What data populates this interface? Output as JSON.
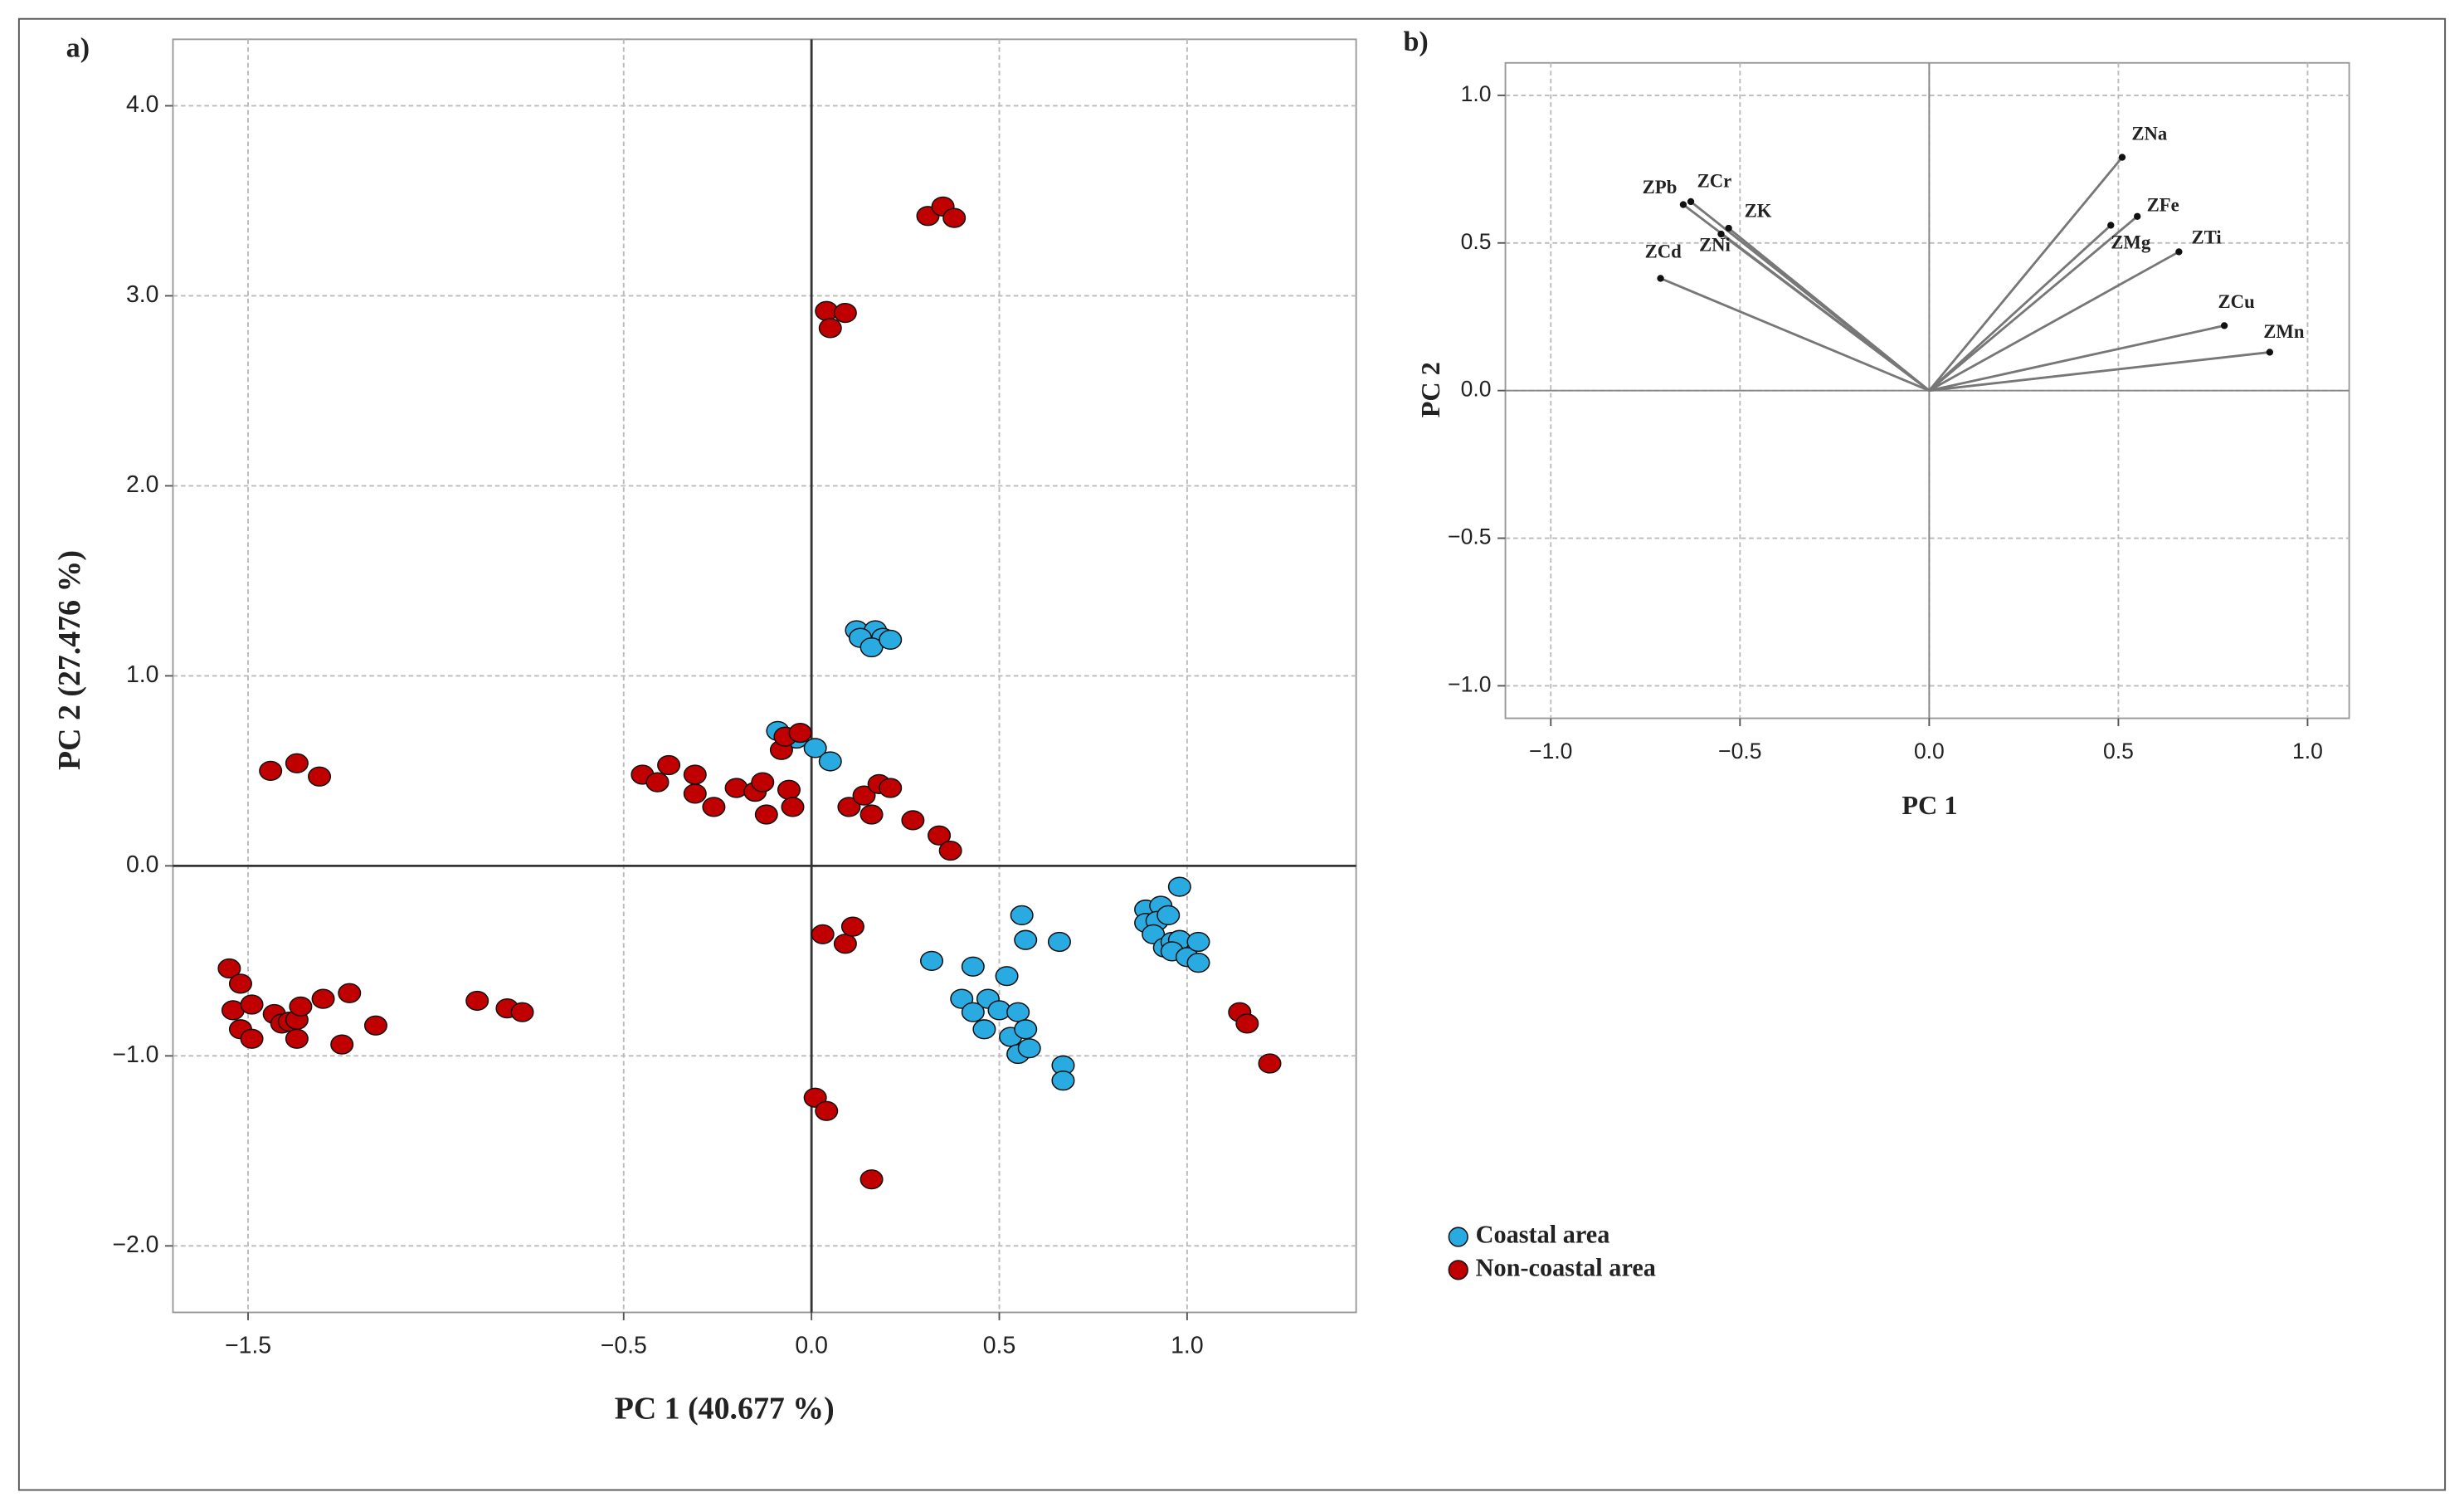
{
  "chart_data": [
    {
      "type": "scatter",
      "panel_label": "a)",
      "xlabel": "PC 1 (40.677 %)",
      "ylabel": "PC 2 (27.476 %)",
      "xlim": [
        -1.7,
        1.45
      ],
      "ylim": [
        -2.35,
        4.35
      ],
      "xticks": [
        {
          "value": -1.5,
          "label": "−1.5"
        },
        {
          "value": -0.5,
          "label": "−0.5"
        },
        {
          "value": 0,
          "label": "0.0"
        },
        0.5,
        {
          "value": 1,
          "label": "1.0"
        }
      ],
      "yticks": [
        {
          "value": -2,
          "label": "−2.0"
        },
        {
          "value": -1,
          "label": "−1.0"
        },
        {
          "value": 0,
          "label": "0.0"
        },
        {
          "value": 1,
          "label": "1.0"
        },
        {
          "value": 2,
          "label": "2.0"
        },
        {
          "value": 3,
          "label": "3.0"
        },
        {
          "value": 4,
          "label": "4.0"
        }
      ],
      "grid": true,
      "series": [
        {
          "name": "Coastal area",
          "color": "#29abe2",
          "x": [
            0.12,
            0.17,
            0.19,
            0.13,
            0.16,
            0.21,
            -0.09,
            -0.04,
            0.01,
            0.05,
            0.32,
            0.43,
            0.52,
            0.56,
            0.57,
            0.4,
            0.47,
            0.43,
            0.5,
            0.46,
            0.55,
            0.53,
            0.57,
            0.55,
            0.58,
            0.66,
            0.67,
            0.67,
            0.89,
            0.89,
            0.93,
            0.92,
            0.95,
            0.91,
            0.94,
            0.96,
            0.98,
            0.96,
            0.98,
            1.0,
            1.03,
            1.03
          ],
          "y": [
            1.24,
            1.24,
            1.2,
            1.2,
            1.15,
            1.19,
            0.71,
            0.67,
            0.62,
            0.55,
            -0.5,
            -0.53,
            -0.58,
            -0.26,
            -0.39,
            -0.7,
            -0.7,
            -0.77,
            -0.76,
            -0.86,
            -0.77,
            -0.9,
            -0.86,
            -0.99,
            -0.96,
            -0.4,
            -1.05,
            -1.13,
            -0.23,
            -0.3,
            -0.21,
            -0.29,
            -0.26,
            -0.36,
            -0.43,
            -0.4,
            -0.39,
            -0.45,
            -0.11,
            -0.48,
            -0.4,
            -0.51
          ]
        },
        {
          "name": "Non-coastal area",
          "color": "#c00000",
          "x": [
            0.31,
            0.35,
            0.38,
            0.04,
            0.05,
            0.09,
            -1.44,
            -1.37,
            -1.31,
            -0.45,
            -0.41,
            -0.38,
            -0.31,
            -0.31,
            -0.26,
            -0.2,
            -0.15,
            -0.13,
            -0.12,
            -0.06,
            -0.05,
            -0.08,
            -0.07,
            -0.03,
            0.1,
            0.14,
            0.16,
            0.18,
            0.21,
            0.27,
            0.34,
            0.37,
            0.03,
            0.09,
            0.11,
            0.01,
            0.04,
            0.16,
            -1.55,
            -1.52,
            -1.54,
            -1.52,
            -1.49,
            -1.49,
            -1.43,
            -1.41,
            -1.39,
            -1.37,
            -1.37,
            -1.36,
            -1.3,
            -1.25,
            -1.23,
            -1.16,
            -0.89,
            -0.81,
            -0.77,
            1.14,
            1.16,
            1.22
          ],
          "y": [
            3.42,
            3.47,
            3.41,
            2.92,
            2.83,
            2.91,
            0.5,
            0.54,
            0.47,
            0.48,
            0.44,
            0.53,
            0.48,
            0.38,
            0.31,
            0.41,
            0.39,
            0.44,
            0.27,
            0.4,
            0.31,
            0.61,
            0.68,
            0.7,
            0.31,
            0.37,
            0.27,
            0.43,
            0.41,
            0.24,
            0.16,
            0.08,
            -0.36,
            -0.41,
            -0.32,
            -1.22,
            -1.29,
            -1.65,
            -0.54,
            -0.62,
            -0.76,
            -0.86,
            -0.73,
            -0.91,
            -0.78,
            -0.83,
            -0.82,
            -0.81,
            -0.91,
            -0.74,
            -0.7,
            -0.94,
            -0.67,
            -0.84,
            -0.71,
            -0.75,
            -0.77,
            -0.77,
            -0.83,
            -1.04
          ]
        }
      ]
    },
    {
      "type": "vector",
      "panel_label": "b)",
      "xlabel": "PC 1",
      "ylabel": "PC 2",
      "xlim": [
        -1.12,
        1.11
      ],
      "ylim": [
        -1.11,
        1.11
      ],
      "xticks": [
        {
          "value": -1,
          "label": "−1.0"
        },
        {
          "value": -0.5,
          "label": "−0.5"
        },
        {
          "value": 0,
          "label": "0.0"
        },
        0.5,
        {
          "value": 1,
          "label": "1.0"
        }
      ],
      "yticks": [
        {
          "value": -1,
          "label": "−1.0"
        },
        {
          "value": -0.5,
          "label": "−0.5"
        },
        {
          "value": 0,
          "label": "0.0"
        },
        0.5,
        {
          "value": 1,
          "label": "1.0"
        }
      ],
      "grid": true,
      "color": "#777777",
      "labels": [
        "ZPb",
        "ZCr",
        "ZK",
        "ZNi",
        "ZCd",
        "ZNa",
        "ZFe",
        "ZMg",
        "ZTi",
        "ZCu",
        "ZMn"
      ],
      "x": [
        -0.65,
        -0.63,
        -0.53,
        -0.55,
        -0.71,
        0.51,
        0.55,
        0.48,
        0.66,
        0.78,
        0.9
      ],
      "y": [
        0.63,
        0.64,
        0.55,
        0.53,
        0.38,
        0.79,
        0.59,
        0.56,
        0.47,
        0.22,
        0.13
      ]
    }
  ]
}
